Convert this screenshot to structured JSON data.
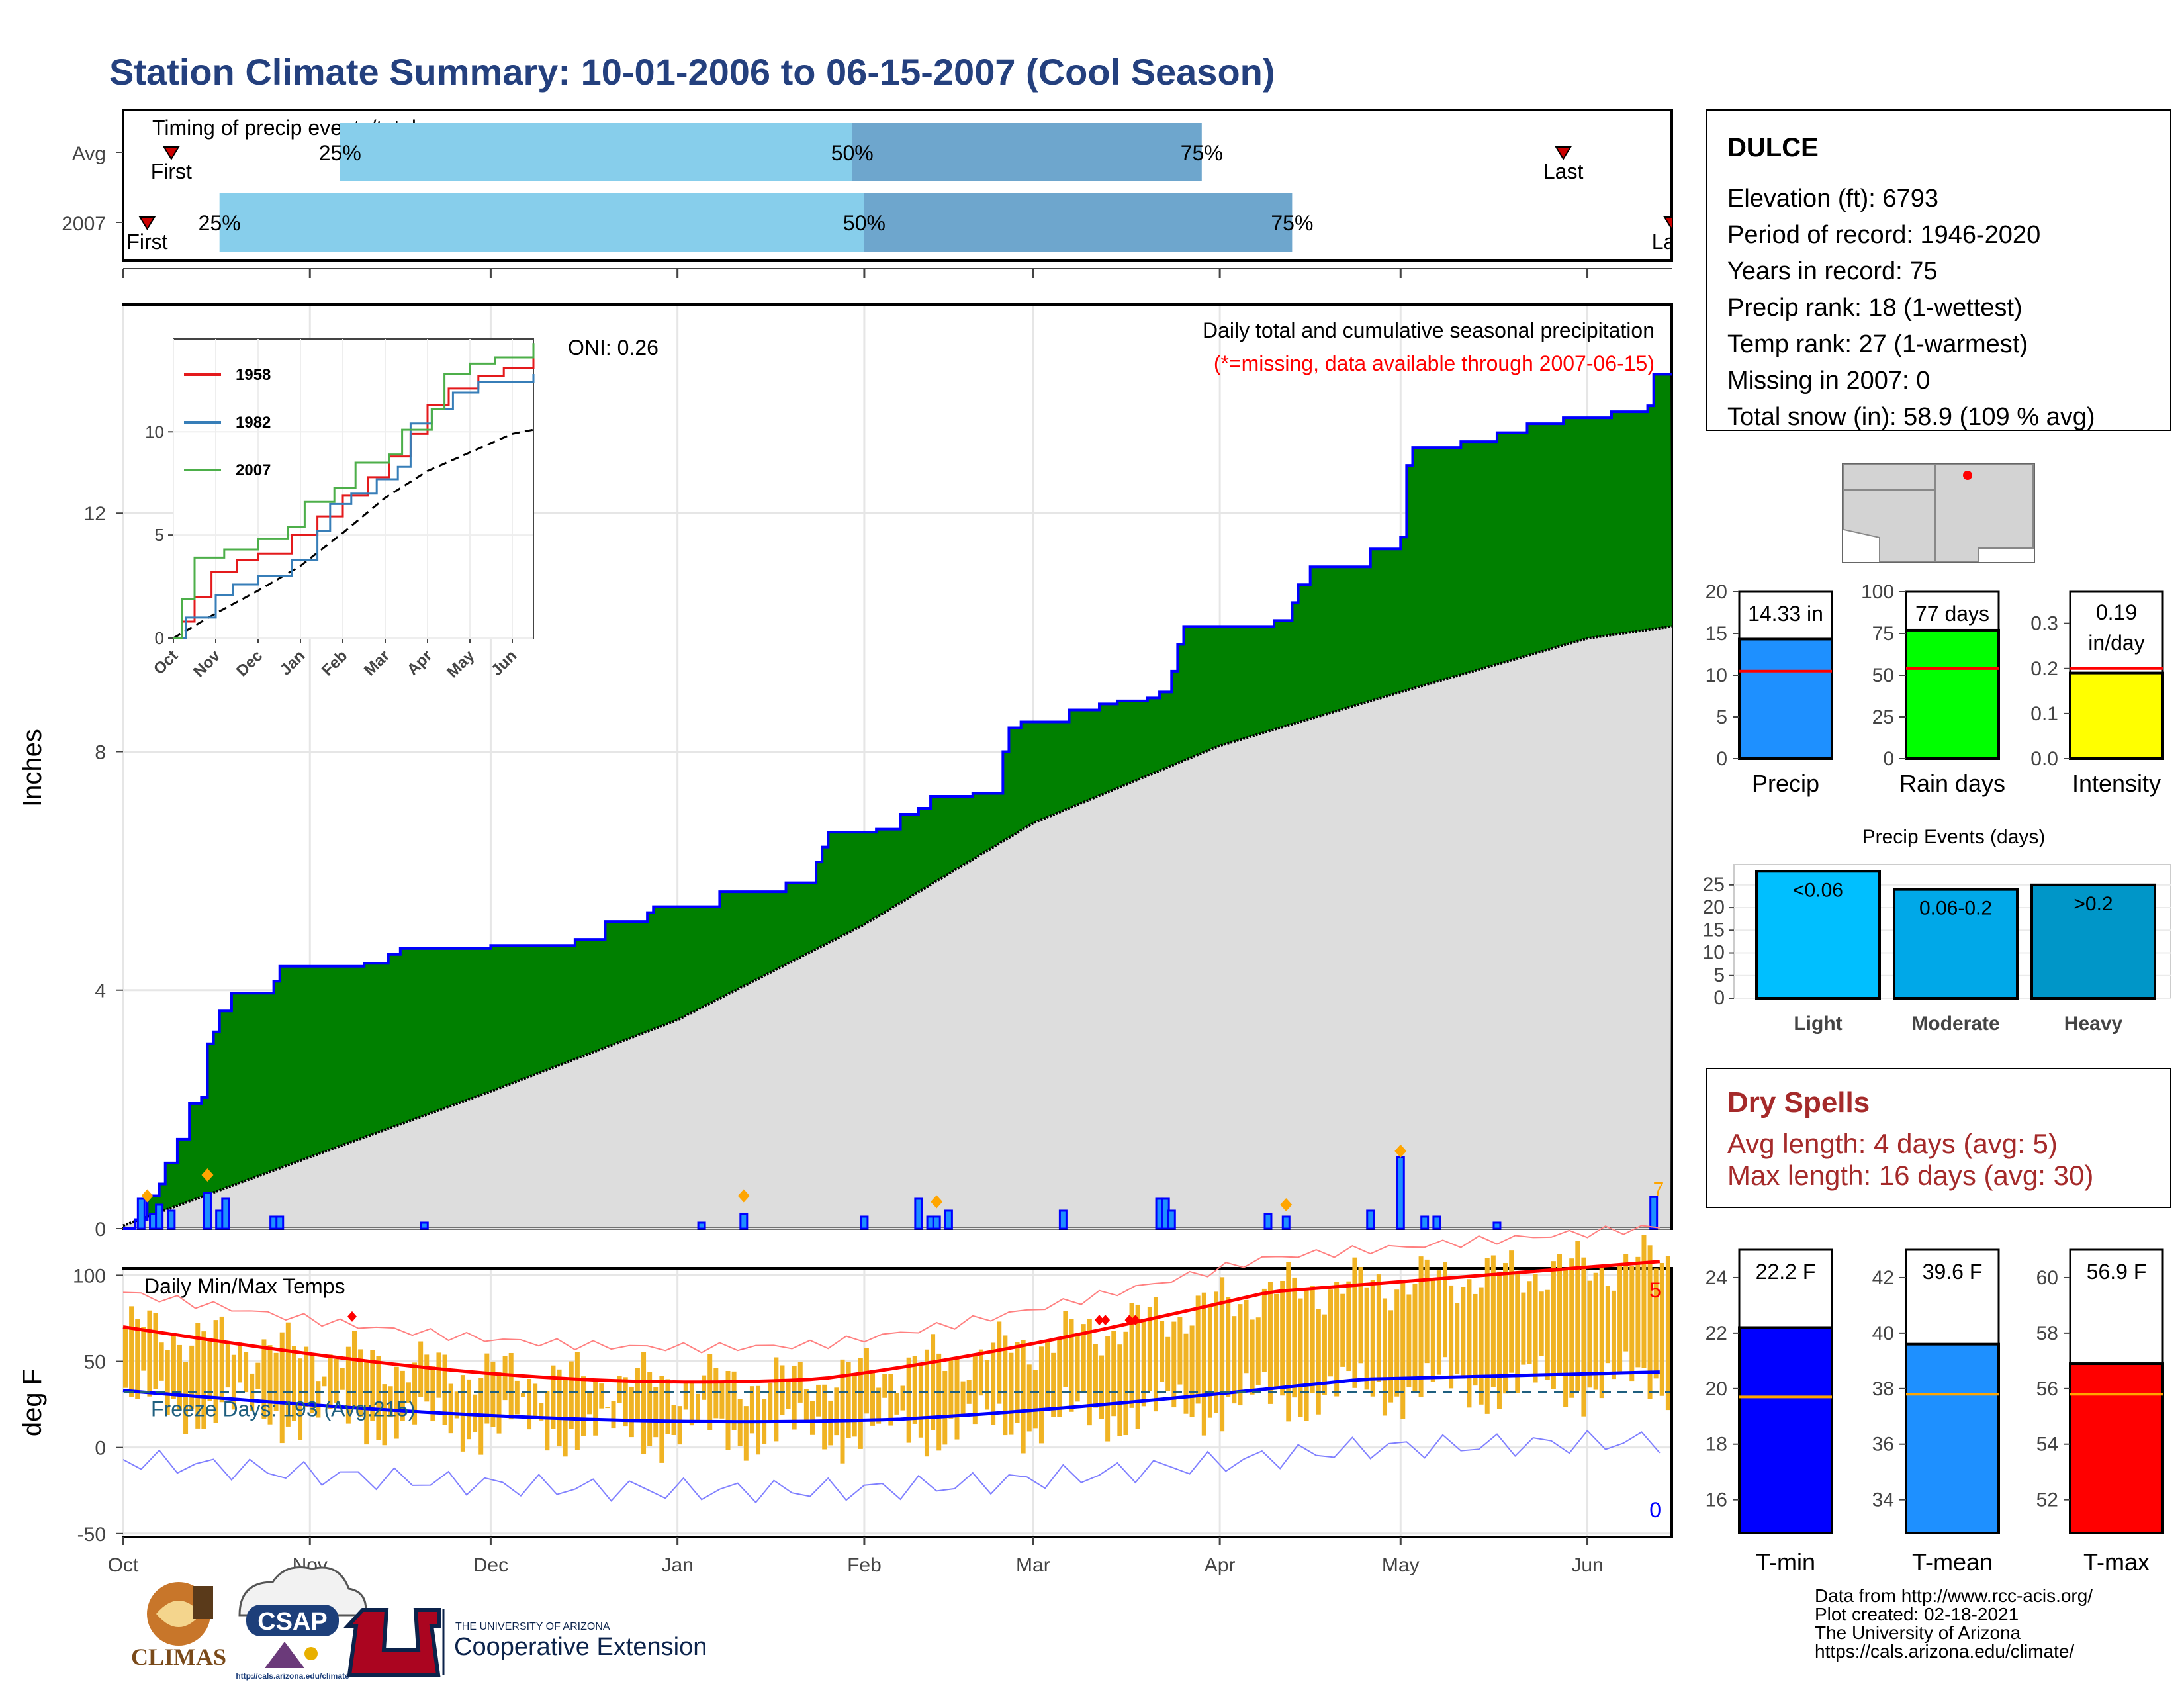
{
  "page": {
    "title": "Station Climate Summary: 10-01-2006 to 06-15-2007 (Cool Season)",
    "footer": [
      "Data from http://www.rcc-acis.org/",
      "Plot created: 02-18-2021",
      "The University of Arizona",
      "https://cals.arizona.edu/climate/"
    ],
    "logos": {
      "climas": "CLIMAS",
      "csap": "CSAP",
      "csap_url": "http://cals.arizona.edu/climate",
      "ua_top": "THE UNIVERSITY OF ARIZONA",
      "ua_bottom": "Cooperative Extension"
    }
  },
  "chart_data": [
    {
      "id": "timing",
      "type": "bar",
      "title": "Timing of precip events/totals",
      "rows": [
        {
          "label": "Avg",
          "first": "Oct 9",
          "q25": "Nov 6",
          "q50": "Jan 30",
          "q75": "Mar 29",
          "last": "May 28",
          "text": {
            "first": "First",
            "q25": "25%",
            "q50": "50%",
            "q75": "75%",
            "last": "Last"
          }
        },
        {
          "label": "2007",
          "first": "Oct 5",
          "q25": "Oct 17",
          "q50": "Feb 1",
          "q75": "Apr 13",
          "last": "Jun 15",
          "text": {
            "first": "First",
            "q25": "25%",
            "q50": "50%",
            "q75": "75%",
            "last": "Last"
          }
        }
      ],
      "colors": {
        "light": "#87ceeb",
        "dark": "#6ea6cd",
        "marker": "#cc0000"
      }
    },
    {
      "id": "precip",
      "type": "area",
      "title": "Daily total and cumulative seasonal precipitation",
      "subtitle": "(*=missing, data available through 2007-06-15)",
      "ylabel": "Inches",
      "ylim": [
        0,
        15.5
      ],
      "yticks": [
        0,
        4,
        8,
        12
      ],
      "xlim": [
        "2006-10-01",
        "2007-06-15"
      ],
      "xticks": [
        "Oct",
        "Nov",
        "Dec",
        "Jan",
        "Feb",
        "Mar",
        "Apr",
        "May",
        "Jun"
      ],
      "oni": "ONI: 0.26",
      "cumulative_2007": [
        [
          "2006-10-01",
          0
        ],
        [
          "2006-10-03",
          0.15
        ],
        [
          "2006-10-05",
          0.55
        ],
        [
          "2006-10-07",
          0.75
        ],
        [
          "2006-10-08",
          1.1
        ],
        [
          "2006-10-10",
          1.5
        ],
        [
          "2006-10-12",
          2.1
        ],
        [
          "2006-10-14",
          2.2
        ],
        [
          "2006-10-15",
          3.1
        ],
        [
          "2006-10-16",
          3.3
        ],
        [
          "2006-10-17",
          3.65
        ],
        [
          "2006-10-19",
          3.95
        ],
        [
          "2006-10-26",
          4.15
        ],
        [
          "2006-10-27",
          4.4
        ],
        [
          "2006-11-10",
          4.45
        ],
        [
          "2006-11-14",
          4.6
        ],
        [
          "2006-11-16",
          4.7
        ],
        [
          "2006-12-01",
          4.75
        ],
        [
          "2006-12-15",
          4.85
        ],
        [
          "2006-12-20",
          5.15
        ],
        [
          "2006-12-27",
          5.3
        ],
        [
          "2006-12-28",
          5.4
        ],
        [
          "2007-01-01",
          5.4
        ],
        [
          "2007-01-08",
          5.65
        ],
        [
          "2007-01-19",
          5.8
        ],
        [
          "2007-01-24",
          6.15
        ],
        [
          "2007-01-25",
          6.4
        ],
        [
          "2007-01-26",
          6.65
        ],
        [
          "2007-02-03",
          6.7
        ],
        [
          "2007-02-07",
          6.95
        ],
        [
          "2007-02-10",
          7.05
        ],
        [
          "2007-02-12",
          7.25
        ],
        [
          "2007-02-19",
          7.3
        ],
        [
          "2007-02-24",
          8.0
        ],
        [
          "2007-02-25",
          8.4
        ],
        [
          "2007-02-27",
          8.5
        ],
        [
          "2007-03-07",
          8.7
        ],
        [
          "2007-03-12",
          8.8
        ],
        [
          "2007-03-15",
          8.85
        ],
        [
          "2007-03-20",
          8.9
        ],
        [
          "2007-03-22",
          9.0
        ],
        [
          "2007-03-24",
          9.35
        ],
        [
          "2007-03-25",
          9.8
        ],
        [
          "2007-03-26",
          10.1
        ],
        [
          "2007-04-07",
          10.1
        ],
        [
          "2007-04-10",
          10.2
        ],
        [
          "2007-04-13",
          10.5
        ],
        [
          "2007-04-14",
          10.8
        ],
        [
          "2007-04-16",
          11.1
        ],
        [
          "2007-04-26",
          11.4
        ],
        [
          "2007-05-01",
          11.6
        ],
        [
          "2007-05-02",
          12.8
        ],
        [
          "2007-05-03",
          13.1
        ],
        [
          "2007-05-11",
          13.2
        ],
        [
          "2007-05-17",
          13.35
        ],
        [
          "2007-05-22",
          13.5
        ],
        [
          "2007-05-28",
          13.6
        ],
        [
          "2007-06-05",
          13.7
        ],
        [
          "2007-06-11",
          13.8
        ],
        [
          "2007-06-12",
          14.33
        ],
        [
          "2007-06-15",
          14.33
        ]
      ],
      "cumulative_avg": [
        [
          "2006-10-01",
          0.05
        ],
        [
          "2006-11-01",
          1.2
        ],
        [
          "2006-12-01",
          2.3
        ],
        [
          "2007-01-01",
          3.5
        ],
        [
          "2007-02-01",
          5.1
        ],
        [
          "2007-03-01",
          6.8
        ],
        [
          "2007-04-01",
          8.1
        ],
        [
          "2007-05-01",
          9.0
        ],
        [
          "2007-06-01",
          9.9
        ],
        [
          "2007-06-15",
          10.1
        ]
      ],
      "daily": [
        [
          "2006-10-04",
          0.5
        ],
        [
          "2006-10-06",
          0.25
        ],
        [
          "2006-10-07",
          0.4
        ],
        [
          "2006-10-09",
          0.3
        ],
        [
          "2006-10-15",
          0.6
        ],
        [
          "2006-10-17",
          0.3
        ],
        [
          "2006-10-18",
          0.5
        ],
        [
          "2006-10-26",
          0.2
        ],
        [
          "2006-10-27",
          0.2
        ],
        [
          "2006-11-20",
          0.1
        ],
        [
          "2007-01-05",
          0.1
        ],
        [
          "2007-01-12",
          0.25
        ],
        [
          "2007-02-01",
          0.2
        ],
        [
          "2007-02-10",
          0.5
        ],
        [
          "2007-02-12",
          0.2
        ],
        [
          "2007-02-13",
          0.2
        ],
        [
          "2007-02-15",
          0.3
        ],
        [
          "2007-03-06",
          0.3
        ],
        [
          "2007-03-22",
          0.5
        ],
        [
          "2007-03-23",
          0.5
        ],
        [
          "2007-03-24",
          0.3
        ],
        [
          "2007-04-09",
          0.25
        ],
        [
          "2007-04-12",
          0.2
        ],
        [
          "2007-04-26",
          0.3
        ],
        [
          "2007-05-01",
          1.2
        ],
        [
          "2007-05-05",
          0.2
        ],
        [
          "2007-05-07",
          0.2
        ],
        [
          "2007-05-17",
          0.1
        ],
        [
          "2007-06-12",
          0.53
        ]
      ],
      "highlights": [
        [
          "2006-10-05",
          0.55
        ],
        [
          "2006-10-15",
          0.9
        ],
        [
          "2007-01-12",
          0.55
        ],
        [
          "2007-02-13",
          0.45
        ],
        [
          "2007-04-12",
          0.4
        ],
        [
          "2007-05-01",
          1.3
        ]
      ],
      "end_label": "7",
      "colors": {
        "cum": "#008000",
        "cum_line": "#0000ff",
        "avg": "#dddddd",
        "bar": "#0000ff",
        "bar_fill": "#1e90ff",
        "dot": "#ffa500"
      }
    },
    {
      "id": "inset",
      "type": "line",
      "xticks": [
        "Oct",
        "Nov",
        "Dec",
        "Jan",
        "Feb",
        "Mar",
        "Apr",
        "May",
        "Jun"
      ],
      "yticks": [
        0,
        5,
        10
      ],
      "ylim": [
        0,
        14.5
      ],
      "series": [
        {
          "name": "1958",
          "color": "#e41a1c",
          "points": [
            [
              0,
              0
            ],
            [
              0.2,
              0.8
            ],
            [
              0.5,
              2.0
            ],
            [
              0.9,
              3.2
            ],
            [
              1.5,
              3.8
            ],
            [
              2.0,
              4.1
            ],
            [
              2.8,
              5.0
            ],
            [
              3.4,
              5.9
            ],
            [
              4.0,
              6.9
            ],
            [
              4.6,
              7.8
            ],
            [
              5.1,
              8.8
            ],
            [
              5.6,
              9.9
            ],
            [
              6.0,
              11.3
            ],
            [
              6.5,
              12.1
            ],
            [
              7.2,
              12.7
            ],
            [
              7.8,
              13.1
            ],
            [
              8.5,
              13.6
            ]
          ]
        },
        {
          "name": "1982",
          "color": "#377eb8",
          "points": [
            [
              0,
              0
            ],
            [
              0.3,
              1.0
            ],
            [
              1.0,
              2.1
            ],
            [
              1.4,
              2.6
            ],
            [
              2.0,
              3.0
            ],
            [
              2.8,
              3.8
            ],
            [
              3.4,
              5.2
            ],
            [
              3.7,
              6.5
            ],
            [
              4.2,
              7.0
            ],
            [
              4.8,
              7.7
            ],
            [
              5.3,
              8.3
            ],
            [
              5.6,
              10.4
            ],
            [
              6.1,
              11.1
            ],
            [
              6.6,
              11.9
            ],
            [
              7.2,
              12.4
            ],
            [
              8.5,
              12.8
            ]
          ]
        },
        {
          "name": "2007",
          "color": "#4daf4a",
          "points": [
            [
              0,
              0
            ],
            [
              0.2,
              1.9
            ],
            [
              0.5,
              3.9
            ],
            [
              1.2,
              4.3
            ],
            [
              2.0,
              4.8
            ],
            [
              2.7,
              5.4
            ],
            [
              3.1,
              6.6
            ],
            [
              3.8,
              7.3
            ],
            [
              4.3,
              8.5
            ],
            [
              5.1,
              8.9
            ],
            [
              5.4,
              10.1
            ],
            [
              6.1,
              11.1
            ],
            [
              6.4,
              12.8
            ],
            [
              7.0,
              13.3
            ],
            [
              7.6,
              13.6
            ],
            [
              8.5,
              14.3
            ]
          ]
        }
      ],
      "avg_points": [
        [
          0,
          0
        ],
        [
          1,
          1.2
        ],
        [
          2,
          2.3
        ],
        [
          3,
          3.5
        ],
        [
          4,
          5.1
        ],
        [
          5,
          6.8
        ],
        [
          6,
          8.1
        ],
        [
          7,
          9.0
        ],
        [
          8,
          9.9
        ],
        [
          8.5,
          10.1
        ]
      ]
    },
    {
      "id": "temps",
      "type": "bar",
      "title": "Daily Min/Max Temps",
      "ylabel": "deg F",
      "ylim": [
        -52,
        104
      ],
      "yticks": [
        -50,
        0,
        50,
        100
      ],
      "freeze_label": "Freeze Days: 193 (Avg:215)",
      "freeze_line": 32,
      "record_high_count": "5",
      "record_low_count": "0",
      "colors": {
        "bar": "#f0b323",
        "avg_max": "#ff0000",
        "avg_min": "#0000ff",
        "rec_max": "#ff8080",
        "rec_min": "#8080ff",
        "freeze": "#1f5f7f",
        "record_dot": "#ff0000"
      }
    },
    {
      "id": "precip_totals",
      "type": "bar",
      "categories": [
        "Precip",
        "Rain days",
        "Intensity"
      ],
      "panels": [
        {
          "name": "Precip",
          "value": 14.33,
          "avg": 10.5,
          "label": "14.33 in",
          "ymax": 20,
          "yticks": [
            0,
            5,
            10,
            15,
            20
          ],
          "color": "#1e90ff"
        },
        {
          "name": "Rain days",
          "value": 77,
          "avg": 54,
          "label": "77 days",
          "ymax": 100,
          "yticks": [
            0,
            25,
            50,
            75,
            100
          ],
          "color": "#00ff00"
        },
        {
          "name": "Intensity",
          "value": 0.19,
          "avg": 0.2,
          "label": "0.19 in/day",
          "ymax": 0.37,
          "yticks": [
            "0.0",
            "0.1",
            "0.2",
            "0.3"
          ],
          "color": "#ffff00"
        }
      ]
    },
    {
      "id": "events",
      "type": "bar",
      "title": "Precip Events (days)",
      "categories": [
        "Light",
        "Moderate",
        "Heavy"
      ],
      "values": [
        28,
        24,
        25
      ],
      "labels": [
        "<0.06",
        "0.06-0.2",
        ">0.2"
      ],
      "yticks": [
        0,
        5,
        10,
        15,
        20,
        25
      ],
      "colors": [
        "#00bfff",
        "#00a8e8",
        "#0096c8"
      ]
    },
    {
      "id": "temp_totals",
      "type": "bar",
      "categories": [
        "T-min",
        "T-mean",
        "T-max"
      ],
      "panels": [
        {
          "name": "T-min",
          "value": 22.2,
          "avg": 19.7,
          "label": "22.2 F",
          "ymin": 14.8,
          "ymax": 25,
          "yticks": [
            16,
            18,
            20,
            22,
            24
          ],
          "color": "#0000ff"
        },
        {
          "name": "T-mean",
          "value": 39.6,
          "avg": 37.8,
          "label": "39.6 F",
          "ymin": 32.8,
          "ymax": 43,
          "yticks": [
            34,
            36,
            38,
            40,
            42
          ],
          "color": "#1e90ff"
        },
        {
          "name": "T-max",
          "value": 56.9,
          "avg": 55.8,
          "label": "56.9 F",
          "ymin": 50.8,
          "ymax": 61,
          "yticks": [
            52,
            54,
            56,
            58,
            60
          ],
          "color": "#ff0000"
        }
      ]
    }
  ],
  "station": {
    "name": "DULCE",
    "lines": [
      "Elevation (ft): 6793",
      "Period of record: 1946-2020",
      "Years in record: 75",
      "Precip rank: 18 (1-wettest)",
      "Temp rank: 27 (1-warmest)",
      "Missing in 2007: 0",
      "Total snow (in): 58.9 (109 % avg)"
    ]
  },
  "dry_spells": {
    "title": "Dry Spells",
    "lines": [
      "Avg length: 4 days (avg: 5)",
      "Max length: 16 days (avg: 30)"
    ],
    "color": "#a52a2a"
  },
  "map": {
    "fill": "#d3d3d3",
    "dot": "#ff0000"
  }
}
